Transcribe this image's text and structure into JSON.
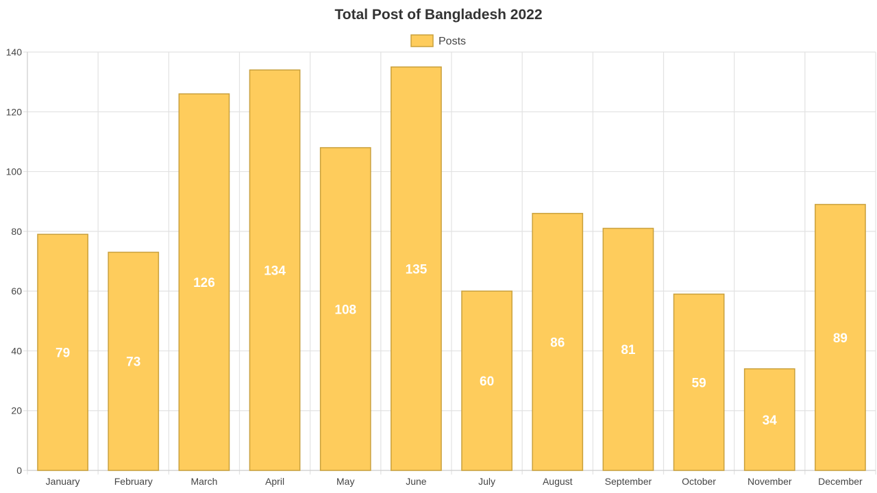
{
  "chart_data": {
    "type": "bar",
    "title": "Total Post of Bangladesh 2022",
    "xlabel": "",
    "ylabel": "",
    "categories": [
      "January",
      "February",
      "March",
      "April",
      "May",
      "June",
      "July",
      "August",
      "September",
      "October",
      "November",
      "December"
    ],
    "series": [
      {
        "name": "Posts",
        "values": [
          79,
          73,
          126,
          134,
          108,
          135,
          60,
          86,
          81,
          59,
          34,
          89
        ]
      }
    ],
    "ylim": [
      0,
      140
    ],
    "y_ticks": [
      0,
      20,
      40,
      60,
      80,
      100,
      120,
      140
    ],
    "grid": true,
    "legend_position": "top",
    "data_labels": true,
    "colors": {
      "bar_fill": "#fecc5c",
      "bar_stroke": "#c9a03c",
      "grid": "#e2e2e2",
      "label": "#ffffff"
    }
  }
}
